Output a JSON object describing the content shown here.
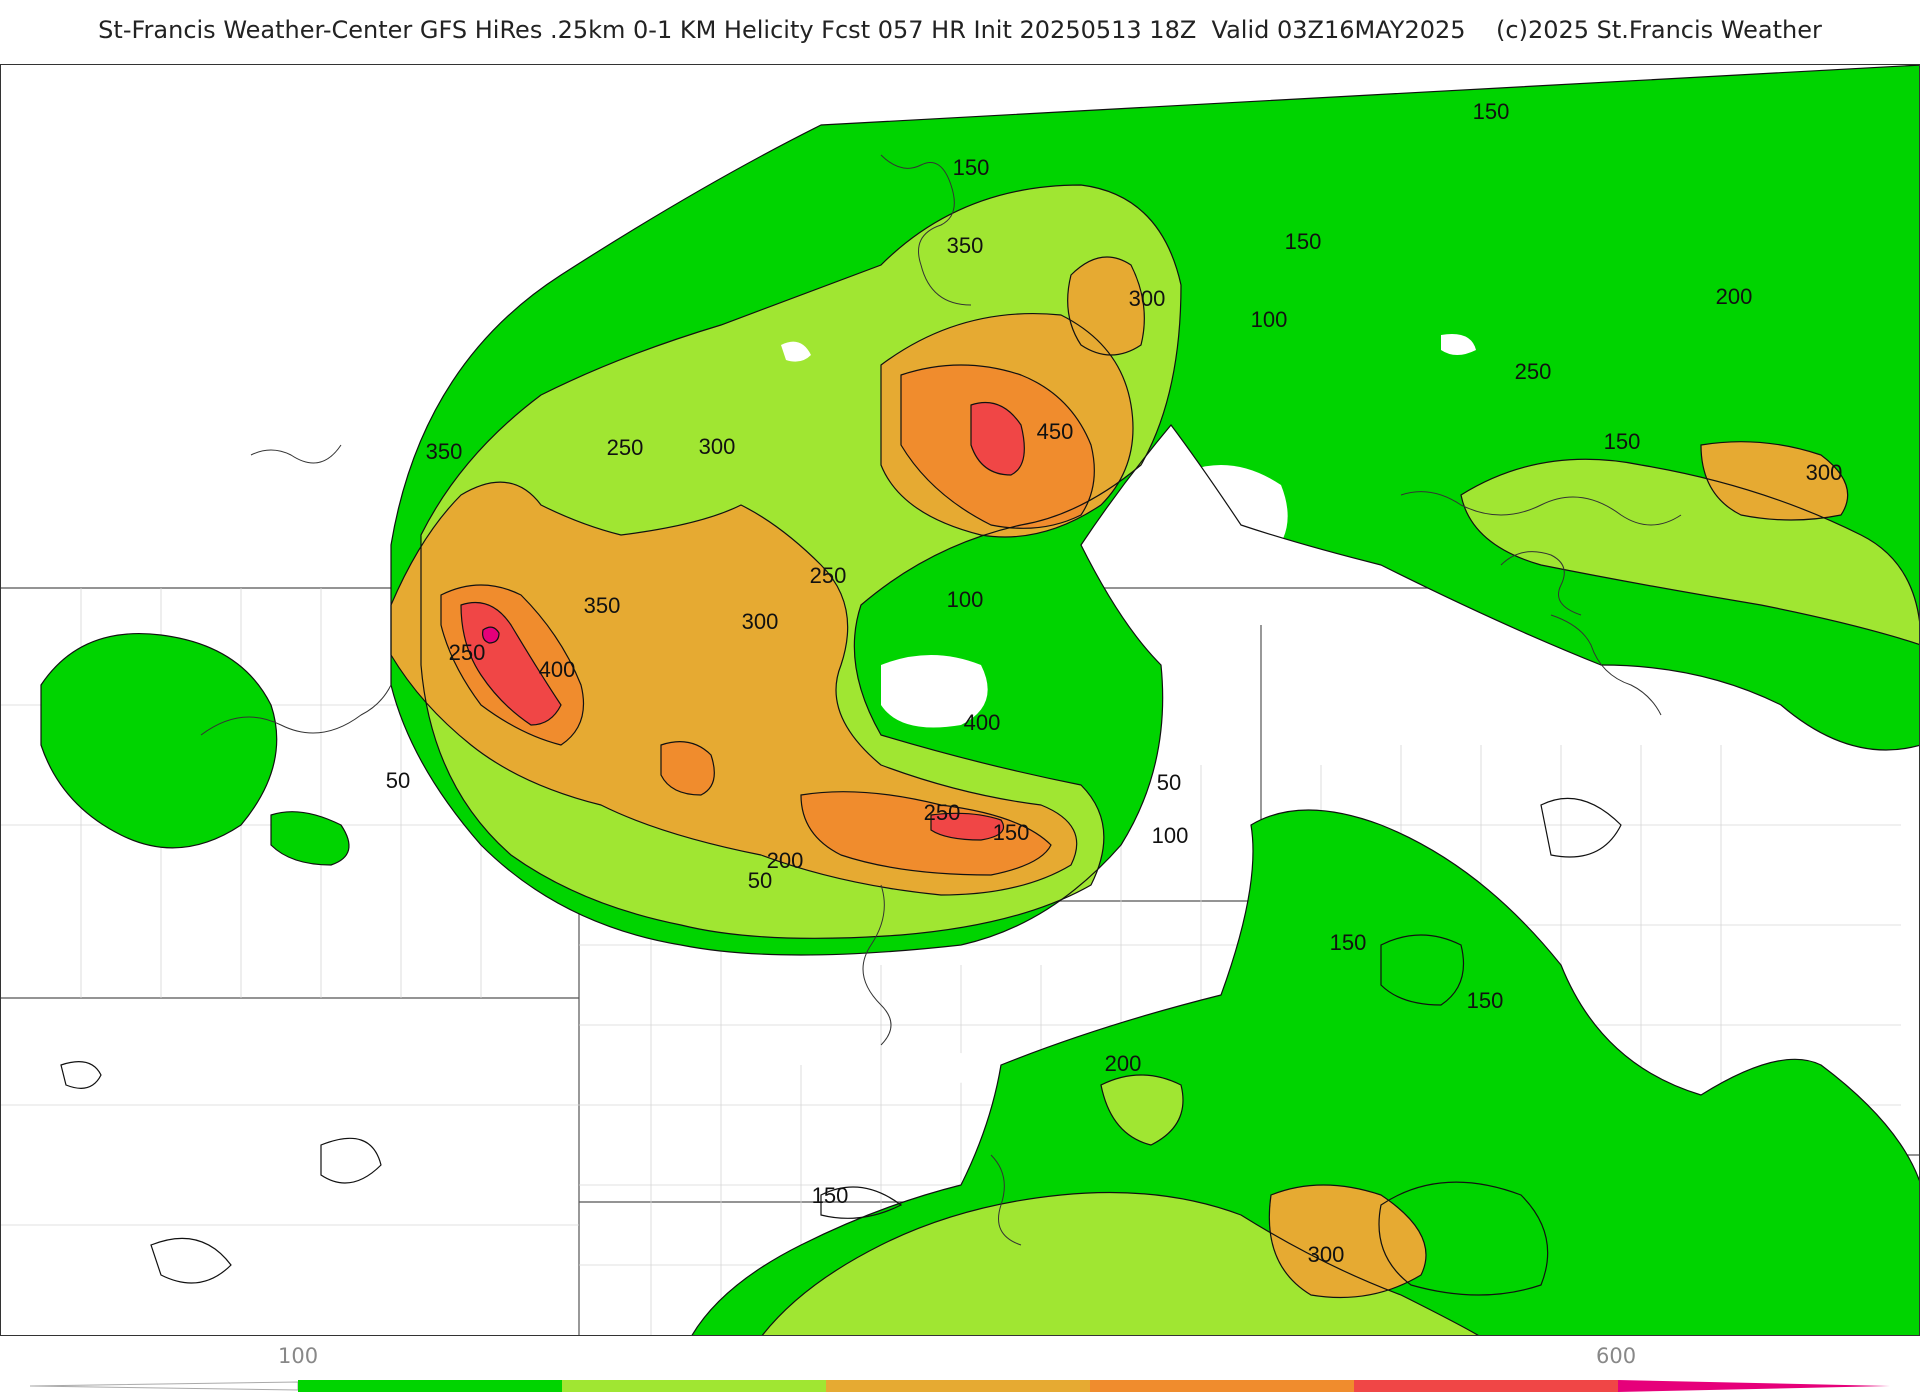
{
  "header": {
    "title": "St-Francis Weather-Center GFS HiRes .25km 0-1 KM Helicity Fcst 057 HR Init 20250513 18Z  Valid 03Z16MAY2025",
    "copyright": "(c)2025 St.Francis Weather"
  },
  "colors": {
    "level_50": "#00d400",
    "level_200": "#a0e632",
    "level_300": "#e6aa32",
    "level_350": "#f08c2d",
    "level_450": "#f04646",
    "level_600": "#e6007a"
  },
  "colorbar": {
    "labels": [
      "100",
      "600"
    ]
  },
  "contour_labels": [
    "150",
    "150",
    "150",
    "100",
    "300",
    "350",
    "200",
    "250",
    "150",
    "300",
    "350",
    "250",
    "300",
    "450",
    "250",
    "100",
    "350",
    "300",
    "250",
    "400",
    "400",
    "50",
    "50",
    "250",
    "150",
    "100",
    "200",
    "50",
    "150",
    "150",
    "200",
    "150",
    "300"
  ]
}
